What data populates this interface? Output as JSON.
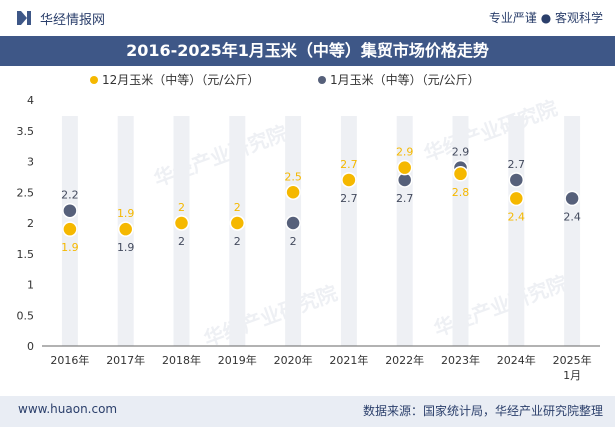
{
  "header": {
    "brand": "华经情报网",
    "tags": "专业严谨 ● 客观科学"
  },
  "watermark": "华经产业研究院",
  "footer": {
    "website": "www.huaon.com",
    "source": "数据来源：国家统计局，华经产业研究院整理"
  },
  "chart_data": {
    "type": "scatter",
    "title": "2016-2025年1月玉米（中等）集贸市场价格走势",
    "categories": [
      "2016年",
      "2017年",
      "2018年",
      "2019年",
      "2020年",
      "2021年",
      "2022年",
      "2023年",
      "2024年",
      "2025年1月"
    ],
    "series": [
      {
        "name": "12月玉米（中等）（元/公斤）",
        "color": "#f5b800",
        "values": [
          1.9,
          1.9,
          2.0,
          2.0,
          2.5,
          2.7,
          2.9,
          2.8,
          2.4,
          null
        ],
        "labels": [
          "1.9",
          "1.9",
          "2",
          "2",
          "2.5",
          "2.7",
          "2.9",
          "2.8",
          "2.4",
          ""
        ]
      },
      {
        "name": "1月玉米（中等）（元/公斤）",
        "color": "#56607a",
        "values": [
          2.2,
          1.9,
          2.0,
          2.0,
          2.0,
          2.7,
          2.7,
          2.9,
          2.7,
          2.4
        ],
        "labels": [
          "2.2",
          "1.9",
          "2",
          "2",
          "2",
          "2.7",
          "2.7",
          "2.9",
          "2.7",
          "2.4"
        ]
      }
    ],
    "ylim": [
      0,
      4
    ],
    "yticks": [
      "0",
      "0.5",
      "1",
      "1.5",
      "2",
      "2.5",
      "3",
      "3.5",
      "4"
    ],
    "legend": "top-center",
    "grid": false
  }
}
